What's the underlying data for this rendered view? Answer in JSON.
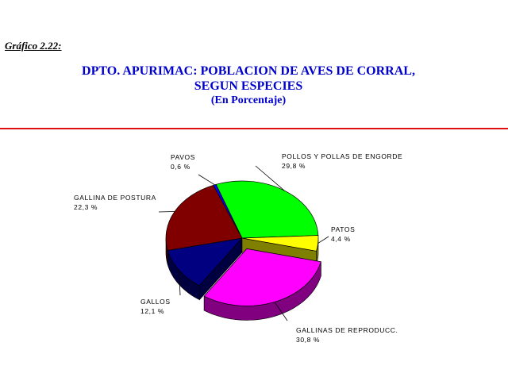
{
  "figure_label": "Gráfico  2.22:",
  "title_lines": [
    "DPTO. APURIMAC: POBLACION DE AVES DE CORRAL,",
    "SEGUN ESPECIES"
  ],
  "subtitle": "(En Porcentaje)",
  "chart_data": {
    "type": "pie",
    "title": "DPTO. APURIMAC: POBLACION DE AVES DE CORRAL, SEGUN ESPECIES",
    "subtitle": "(En Porcentaje)",
    "style": "3d-exploded",
    "slices": [
      {
        "label": "POLLOS Y POLLAS DE ENGORDE",
        "value": 29.8,
        "value_label": "29,8 %",
        "color": "#00ff00",
        "side_color": "#008000",
        "exploded": false
      },
      {
        "label": "PATOS",
        "value": 4.4,
        "value_label": "4,4 %",
        "color": "#ffff00",
        "side_color": "#808000",
        "exploded": false
      },
      {
        "label": "GALLINAS DE REPRODUCC.",
        "value": 30.8,
        "value_label": "30,8 %",
        "color": "#ff00ff",
        "side_color": "#800080",
        "exploded": true
      },
      {
        "label": "GALLOS",
        "value": 12.1,
        "value_label": "12,1 %",
        "color": "#000080",
        "side_color": "#000040",
        "exploded": false
      },
      {
        "label": "GALLINA DE POSTURA",
        "value": 22.3,
        "value_label": "22,3 %",
        "color": "#800000",
        "side_color": "#400000",
        "exploded": false
      },
      {
        "label": "PAVOS",
        "value": 0.6,
        "value_label": "0,6 %",
        "color": "#0000ff",
        "side_color": "#000060",
        "exploded": false
      }
    ]
  }
}
